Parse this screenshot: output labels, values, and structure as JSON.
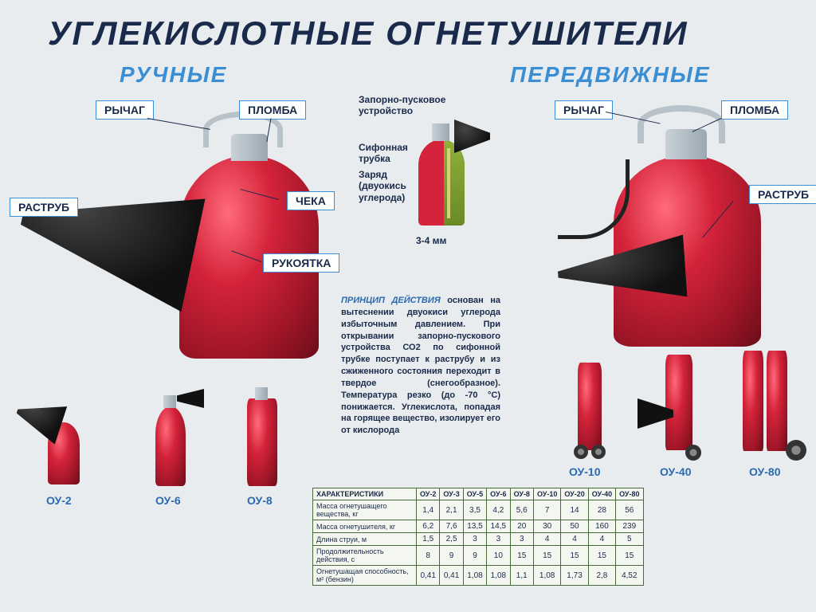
{
  "title": "УГЛЕКИСЛОТНЫЕ ОГНЕТУШИТЕЛИ",
  "sections": {
    "handheld": "РУЧНЫЕ",
    "mobile": "ПЕРЕДВИЖНЫЕ"
  },
  "callouts": {
    "lever": "РЫЧАГ",
    "seal": "ПЛОМБА",
    "horn": "РАСТРУБ",
    "pin": "ЧЕКА",
    "handle": "РУКОЯТКА",
    "lever2": "РЫЧАГ",
    "seal2": "ПЛОМБА",
    "horn2": "РАСТРУБ"
  },
  "annotations": {
    "valve": "Запорно-пусковое\nустройство",
    "siphon": "Сифонная\nтрубка",
    "charge": "Заряд\n(двуокись\nуглерода)",
    "gap": "3-4 мм"
  },
  "principle": {
    "header": "ПРИНЦИП ДЕЙСТВИЯ",
    "body": "основан на вытеснении двуокиси углерода избыточным давлением. При открывании запорно-пускового устройства СО2 по сифонной трубке поступает к раструбу и из сжиженного состояния переходит в твердое (снегообразное). Температура резко (до -70 °С) понижается. Углекислота, попадая на горящее вещество, изолирует его от кислорода"
  },
  "models": {
    "small": [
      "ОУ-2",
      "ОУ-6",
      "ОУ-8"
    ],
    "large": [
      "ОУ-10",
      "ОУ-40",
      "ОУ-80"
    ]
  },
  "table": {
    "header": "ХАРАКТЕРИСТИКИ",
    "columns": [
      "ОУ-2",
      "ОУ-3",
      "ОУ-5",
      "ОУ-6",
      "ОУ-8",
      "ОУ-10",
      "ОУ-20",
      "ОУ-40",
      "ОУ-80"
    ],
    "rows": [
      {
        "label": "Масса огнетушащего вещества, кг",
        "vals": [
          "1,4",
          "2,1",
          "3,5",
          "4,2",
          "5,6",
          "7",
          "14",
          "28",
          "56"
        ]
      },
      {
        "label": "Масса огнетушителя, кг",
        "vals": [
          "6,2",
          "7,6",
          "13,5",
          "14,5",
          "20",
          "30",
          "50",
          "160",
          "239"
        ]
      },
      {
        "label": "Длина струи, м",
        "vals": [
          "1,5",
          "2,5",
          "3",
          "3",
          "3",
          "4",
          "4",
          "4",
          "5"
        ]
      },
      {
        "label": "Продолжительность действия, с",
        "vals": [
          "8",
          "9",
          "9",
          "10",
          "15",
          "15",
          "15",
          "15",
          "15"
        ]
      },
      {
        "label": "Огнетушащая способность, м² (бензин)",
        "vals": [
          "0,41",
          "0,41",
          "1,08",
          "1,08",
          "1,1",
          "1,08",
          "1,73",
          "2,8",
          "4,52"
        ]
      }
    ]
  },
  "colors": {
    "title": "#1a2a4a",
    "section": "#3a8fd4",
    "callout_border": "#3a8fd4",
    "extinguisher": "#d4233a",
    "table_border": "#4a6a3a",
    "table_bg": "#f4f6f0",
    "background": "#e8ecef"
  },
  "layout": {
    "title_fontsize": 42,
    "section_fontsize": 28,
    "callout_fontsize": 14,
    "annotation_fontsize": 12,
    "principle_fontsize": 11,
    "table_fontsize": 10
  }
}
